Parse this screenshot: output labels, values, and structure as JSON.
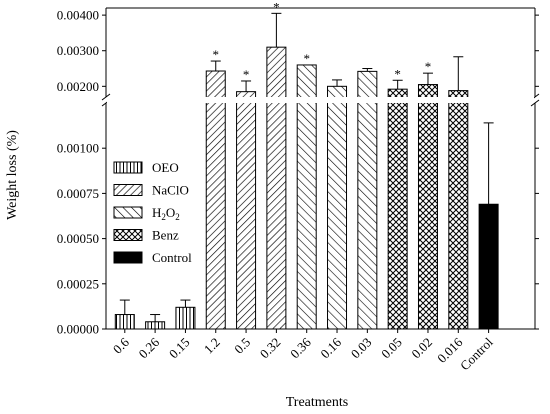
{
  "chart_data": {
    "type": "bar",
    "axis_break": {
      "lower_range": [
        0,
        0.00125
      ],
      "upper_range": [
        0.0017,
        0.0042
      ]
    },
    "title": "",
    "xlabel": "Treatments",
    "ylabel": "Weight loss (%)",
    "lower_ticks": [
      "0.00000",
      "0.00025",
      "0.00050",
      "0.00075",
      "0.00100"
    ],
    "upper_ticks": [
      "0.00200",
      "0.00300",
      "0.00400"
    ],
    "lower_tick_values": [
      0,
      0.00025,
      0.0005,
      0.00075,
      0.001
    ],
    "upper_tick_values": [
      0.002,
      0.003,
      0.004
    ],
    "categories": [
      "0.6",
      "0.26",
      "0.15",
      "1.2",
      "0.5",
      "0.32",
      "0.36",
      "0.16",
      "0.03",
      "0.05",
      "0.02",
      "0.016",
      "Control"
    ],
    "group": [
      "OEO",
      "OEO",
      "OEO",
      "NaClO",
      "NaClO",
      "NaClO",
      "H2O2",
      "H2O2",
      "H2O2",
      "Benz",
      "Benz",
      "Benz",
      "Control"
    ],
    "values": [
      8e-05,
      4e-05,
      0.00012,
      0.00243,
      0.00185,
      0.0031,
      0.0026,
      0.002,
      0.00242,
      0.00192,
      0.00205,
      0.00188,
      0.00069
    ],
    "errors": [
      8e-05,
      4e-05,
      4e-05,
      0.00028,
      0.0003,
      0.00095,
      0,
      0.00018,
      8e-05,
      0.00025,
      0.00032,
      0.00095,
      0.00045
    ],
    "significant": [
      false,
      false,
      false,
      true,
      true,
      true,
      true,
      false,
      false,
      true,
      true,
      false,
      false
    ],
    "legend": [
      {
        "name": "OEO",
        "pattern": "vertical"
      },
      {
        "name": "NaClO",
        "pattern": "diag-up"
      },
      {
        "name": "H2O2",
        "label_main": "H",
        "label_sub": "2",
        "label_tail": "O",
        "label_sub2": "2",
        "pattern": "diag-down"
      },
      {
        "name": "Benz",
        "pattern": "cross"
      },
      {
        "name": "Control",
        "pattern": "solid"
      }
    ],
    "legend_position": "left",
    "significance_marker": "*"
  }
}
